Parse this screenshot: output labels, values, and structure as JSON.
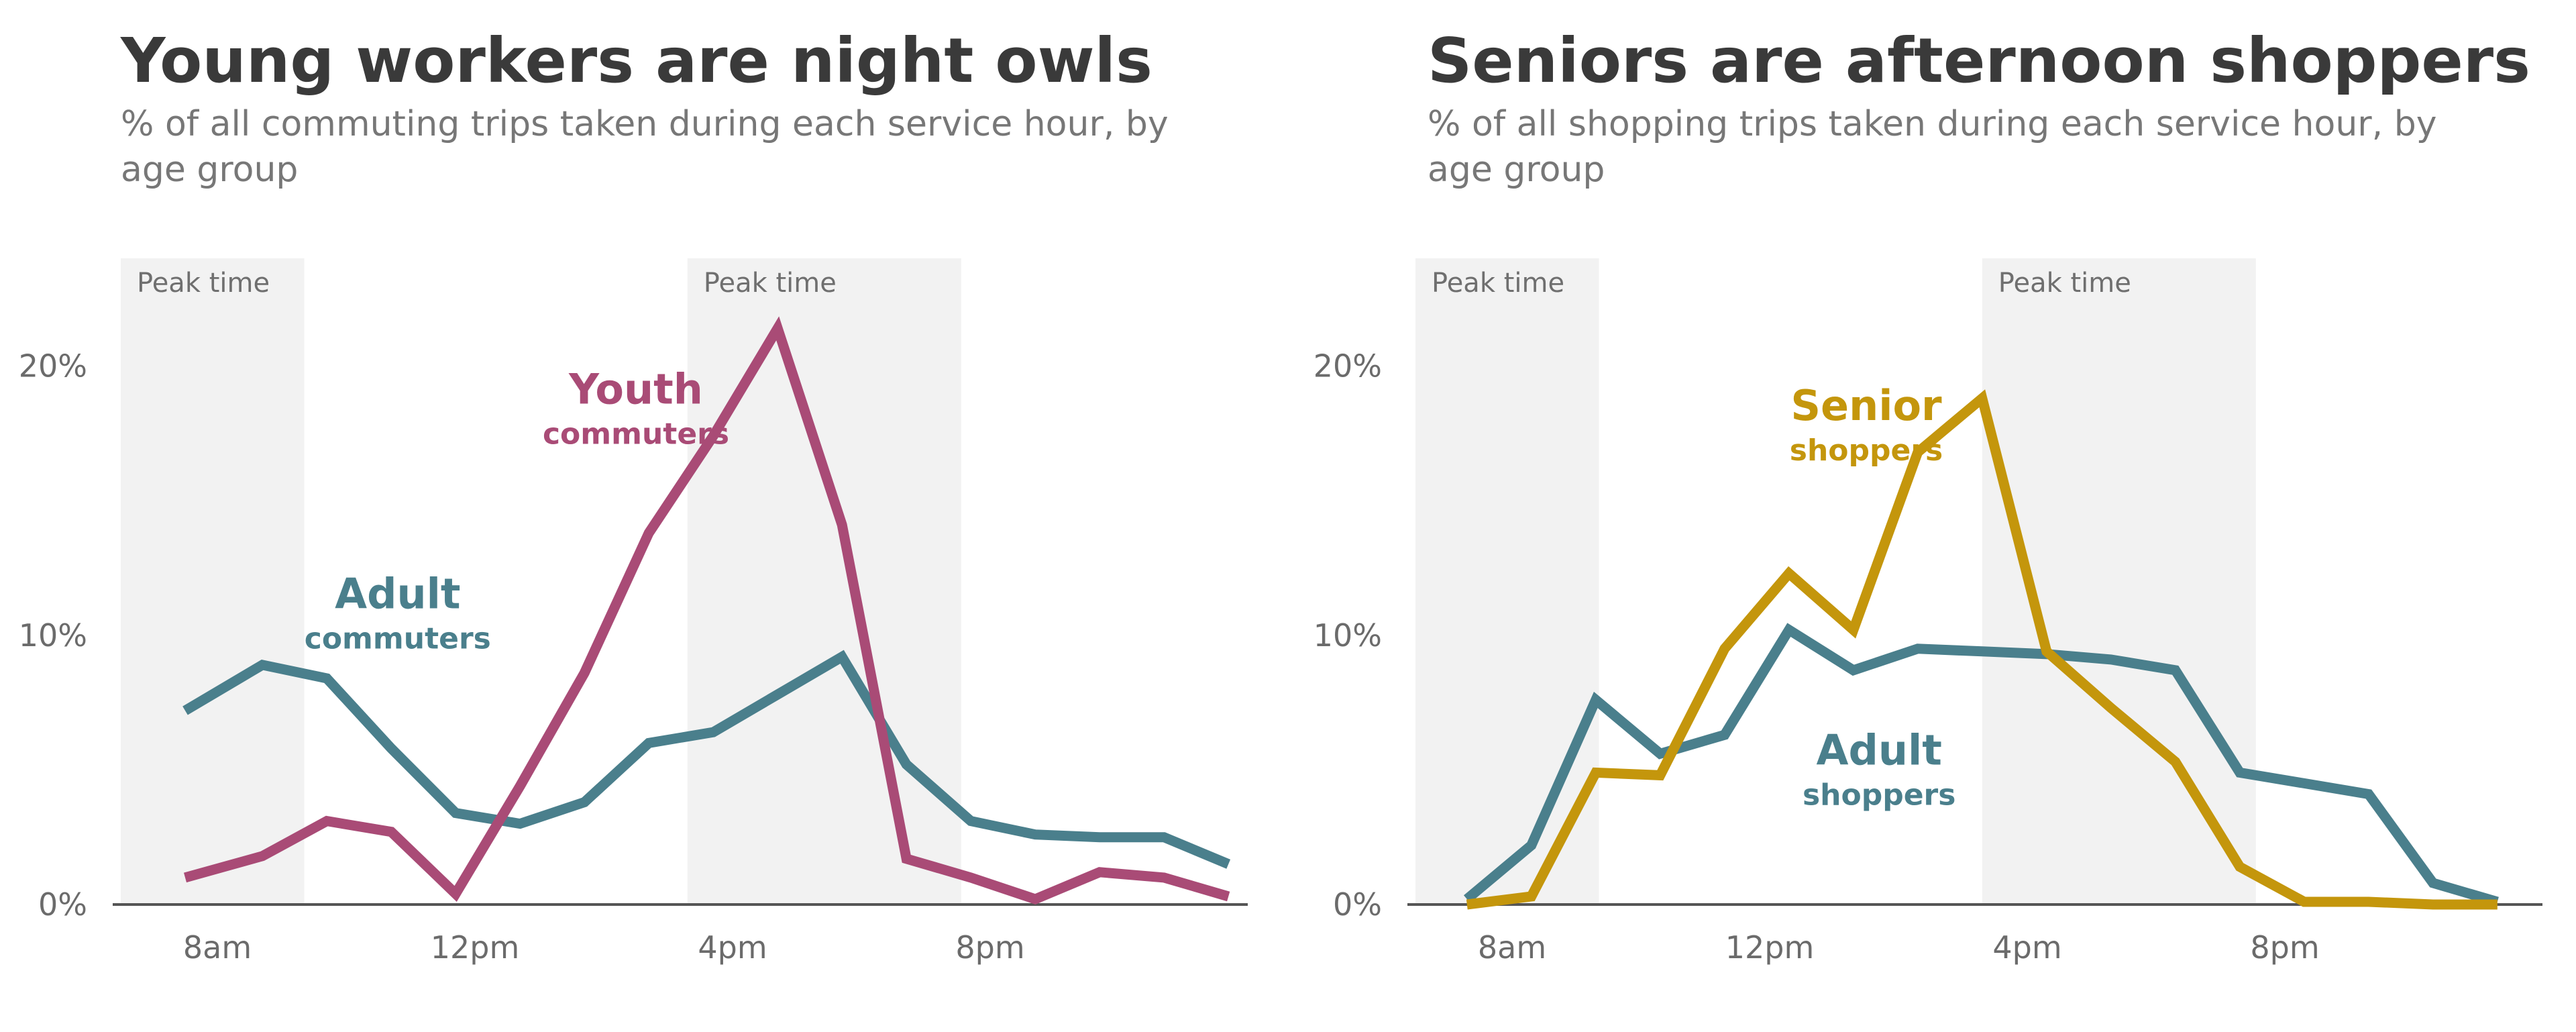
{
  "colors": {
    "youth": "#a94b76",
    "adult": "#4a7f8c",
    "senior": "#c4960c",
    "peak_band": "#f2f2f2",
    "axis": "#555555"
  },
  "chart_data": [
    {
      "type": "line",
      "title": "Young workers are night owls",
      "subtitle": "% of all commuting trips taken during each service hour, by age group",
      "subtitle_lines": [
        "% of all commuting trips taken during each service hour, by",
        "age group"
      ],
      "xlabel": "",
      "ylabel": "",
      "xlim": [
        6.5,
        24.0
      ],
      "ylim": [
        0,
        24
      ],
      "x_ticks": [
        8,
        12,
        16,
        20
      ],
      "x_tick_labels": [
        "8am",
        "12pm",
        "4pm",
        "8pm"
      ],
      "y_ticks": [
        0,
        10,
        20
      ],
      "y_tick_labels": [
        "0%",
        "10%",
        "20%"
      ],
      "grid": false,
      "legend": "direct labels",
      "peak_bands": [
        {
          "label": "Peak time",
          "from": 6.5,
          "to": 9.35
        },
        {
          "label": "Peak time",
          "from": 15.3,
          "to": 19.55
        }
      ],
      "series": [
        {
          "key": "adult",
          "name": "Adult",
          "sub": "commuters",
          "label_at": [
            10.8,
            11.0
          ],
          "x": [
            7.5,
            8.7,
            9.7,
            10.7,
            11.7,
            12.7,
            13.7,
            14.7,
            15.7,
            16.7,
            17.7,
            18.7,
            19.7,
            20.7,
            21.7,
            22.7,
            23.7
          ],
          "values": [
            7.2,
            8.9,
            8.4,
            5.8,
            3.4,
            3.0,
            3.8,
            6.0,
            6.4,
            7.8,
            9.2,
            5.2,
            3.1,
            2.6,
            2.5,
            2.5,
            1.5
          ]
        },
        {
          "key": "youth",
          "name": "Youth",
          "sub": "commuters",
          "label_at": [
            14.5,
            18.6
          ],
          "x": [
            7.5,
            8.7,
            9.7,
            10.7,
            11.7,
            12.7,
            13.7,
            14.7,
            15.7,
            16.7,
            17.7,
            18.7,
            19.7,
            20.7,
            21.7,
            22.7,
            23.7
          ],
          "values": [
            1.0,
            1.8,
            3.1,
            2.7,
            0.4,
            4.4,
            8.6,
            13.8,
            17.4,
            21.4,
            14.1,
            1.7,
            1.0,
            0.2,
            1.2,
            1.0,
            0.3
          ]
        }
      ]
    },
    {
      "type": "line",
      "title": "Seniors are afternoon shoppers",
      "subtitle": "% of all shopping trips taken during each service hour, by age group",
      "subtitle_lines": [
        "% of all shopping trips taken during each service hour, by",
        "age group"
      ],
      "xlabel": "",
      "ylabel": "",
      "xlim": [
        6.5,
        24.0
      ],
      "ylim": [
        0,
        24
      ],
      "x_ticks": [
        8,
        12,
        16,
        20
      ],
      "x_tick_labels": [
        "8am",
        "12pm",
        "4pm",
        "8pm"
      ],
      "y_ticks": [
        0,
        10,
        20
      ],
      "y_tick_labels": [
        "0%",
        "10%",
        "20%"
      ],
      "grid": false,
      "legend": "direct labels",
      "peak_bands": [
        {
          "label": "Peak time",
          "from": 6.5,
          "to": 9.35
        },
        {
          "label": "Peak time",
          "from": 15.3,
          "to": 19.55
        }
      ],
      "series": [
        {
          "key": "adult",
          "name": "Adult",
          "sub": "shoppers",
          "label_at": [
            13.7,
            5.2
          ],
          "x": [
            7.3,
            8.3,
            9.3,
            10.3,
            11.3,
            12.3,
            13.3,
            14.3,
            15.3,
            16.3,
            17.3,
            18.3,
            19.3,
            20.3,
            21.3,
            22.3,
            23.3
          ],
          "values": [
            0.2,
            2.2,
            7.6,
            5.6,
            6.3,
            10.2,
            8.7,
            9.5,
            9.4,
            9.3,
            9.1,
            8.7,
            4.9,
            4.5,
            4.1,
            0.8,
            0.1
          ]
        },
        {
          "key": "senior",
          "name": "Senior",
          "sub": "shoppers",
          "label_at": [
            13.5,
            18.0
          ],
          "x": [
            7.3,
            8.3,
            9.3,
            10.3,
            11.3,
            12.3,
            13.3,
            14.3,
            15.3,
            16.3,
            17.3,
            18.3,
            19.3,
            20.3,
            21.3,
            22.3,
            23.3
          ],
          "values": [
            0.0,
            0.3,
            4.9,
            4.8,
            9.5,
            12.3,
            10.2,
            16.8,
            18.8,
            9.4,
            7.3,
            5.3,
            1.4,
            0.1,
            0.1,
            0.0,
            0.0
          ]
        }
      ]
    }
  ]
}
